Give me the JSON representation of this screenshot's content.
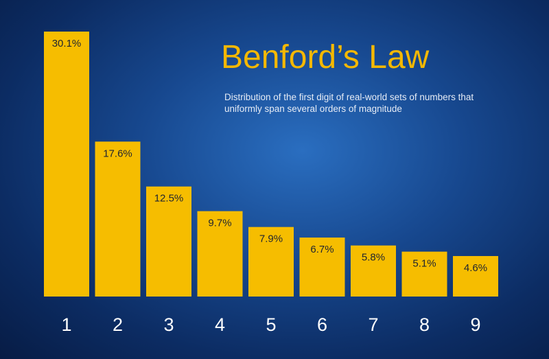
{
  "chart_data": {
    "type": "bar",
    "title": "Benford’s Law",
    "subtitle": "Distribution of the first digit of real-world sets of numbers that uniformly span several orders of magnitude",
    "categories": [
      "1",
      "2",
      "3",
      "4",
      "5",
      "6",
      "7",
      "8",
      "9"
    ],
    "values": [
      30.1,
      17.6,
      12.5,
      9.7,
      7.9,
      6.7,
      5.8,
      5.1,
      4.6
    ],
    "data_labels": [
      "30.1%",
      "17.6%",
      "12.5%",
      "9.7%",
      "7.9%",
      "6.7%",
      "5.8%",
      "5.1%",
      "4.6%"
    ],
    "xlabel": "",
    "ylabel": "",
    "ylim": [
      0,
      30.1
    ],
    "grid": false,
    "colors": {
      "bar": "#f6bd00",
      "title": "#f5b800",
      "background": "#17488f"
    }
  }
}
